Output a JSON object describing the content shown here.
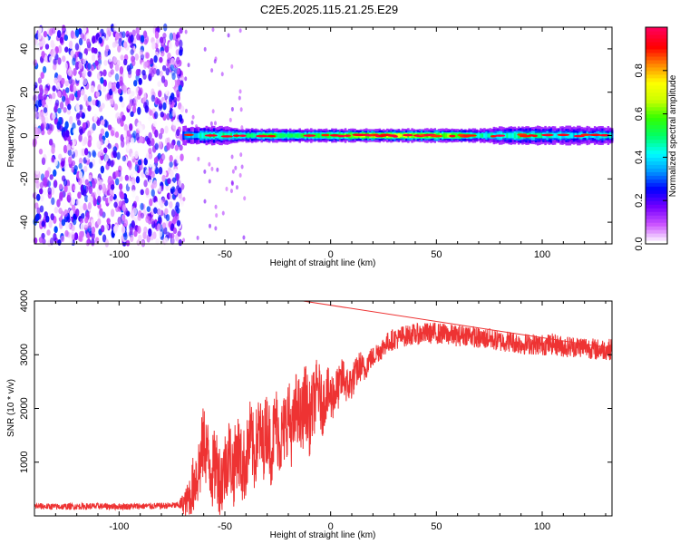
{
  "figure": {
    "title": "C2E5.2025.115.21.25.E29"
  },
  "colors": {
    "snr_line": "#ee3333",
    "axis": "#000000",
    "background": "#ffffff"
  },
  "chart_data": [
    {
      "type": "heatmap",
      "title": "",
      "xlabel": "Height of straight line (km)",
      "ylabel": "Frequency (Hz)",
      "xlim": [
        -140,
        133
      ],
      "ylim": [
        -50,
        50
      ],
      "xticks": [
        -100,
        -50,
        0,
        50,
        100
      ],
      "yticks": [
        -40,
        -20,
        0,
        20,
        40
      ],
      "grid": false,
      "colorbar": {
        "label": "Normalized spectral amplitude",
        "range": [
          0.0,
          1.0
        ],
        "ticks": [
          0.0,
          0.2,
          0.4,
          0.6,
          0.8
        ],
        "colormap": [
          "#ffffff",
          "#cc55ff",
          "#7700ff",
          "#0000ff",
          "#0099ff",
          "#00ffff",
          "#00ff66",
          "#33ff00",
          "#ccff00",
          "#ffff00",
          "#ff8800",
          "#ff0000",
          "#ff0055"
        ]
      },
      "noise_region": {
        "x_range": [
          -140,
          -70
        ],
        "freq_range": [
          -50,
          50
        ],
        "amplitude_range": [
          0.0,
          0.3
        ]
      },
      "ridge": {
        "center_freq": 0,
        "points": [
          {
            "x": -70,
            "amplitude": 0.45,
            "halfwidth_hz": 4
          },
          {
            "x": -60,
            "amplitude": 0.6,
            "halfwidth_hz": 4
          },
          {
            "x": -50,
            "amplitude": 0.65,
            "halfwidth_hz": 4
          },
          {
            "x": -40,
            "amplitude": 0.6,
            "halfwidth_hz": 3
          },
          {
            "x": -30,
            "amplitude": 0.75,
            "halfwidth_hz": 3
          },
          {
            "x": -20,
            "amplitude": 0.7,
            "halfwidth_hz": 3
          },
          {
            "x": -10,
            "amplitude": 0.7,
            "halfwidth_hz": 3
          },
          {
            "x": 0,
            "amplitude": 0.75,
            "halfwidth_hz": 3
          },
          {
            "x": 10,
            "amplitude": 0.85,
            "halfwidth_hz": 3
          },
          {
            "x": 20,
            "amplitude": 0.9,
            "halfwidth_hz": 3
          },
          {
            "x": 30,
            "amplitude": 0.9,
            "halfwidth_hz": 3
          },
          {
            "x": 40,
            "amplitude": 0.9,
            "halfwidth_hz": 3
          },
          {
            "x": 50,
            "amplitude": 0.85,
            "halfwidth_hz": 3
          },
          {
            "x": 60,
            "amplitude": 0.8,
            "halfwidth_hz": 3
          },
          {
            "x": 70,
            "amplitude": 0.6,
            "halfwidth_hz": 3
          },
          {
            "x": 80,
            "amplitude": 0.6,
            "halfwidth_hz": 4
          },
          {
            "x": 90,
            "amplitude": 0.65,
            "halfwidth_hz": 4
          },
          {
            "x": 100,
            "amplitude": 0.6,
            "halfwidth_hz": 4
          },
          {
            "x": 110,
            "amplitude": 0.55,
            "halfwidth_hz": 4
          },
          {
            "x": 120,
            "amplitude": 0.55,
            "halfwidth_hz": 4
          },
          {
            "x": 133,
            "amplitude": 0.55,
            "halfwidth_hz": 4
          }
        ]
      }
    },
    {
      "type": "line",
      "title": "",
      "xlabel": "Height of straight line (km)",
      "ylabel": "SNR (10 * v/v)",
      "xlim": [
        -140,
        133
      ],
      "ylim": [
        0,
        4000
      ],
      "xticks": [
        -100,
        -50,
        0,
        50,
        100
      ],
      "yticks": [
        1000,
        2000,
        3000,
        4000
      ],
      "grid": false,
      "series": [
        {
          "color": "#ee3333",
          "x": [
            -140,
            -130,
            -120,
            -110,
            -100,
            -90,
            -80,
            -72,
            -68,
            -66,
            -64,
            -62,
            -60,
            -58,
            -56,
            -54,
            -52,
            -50,
            -48,
            -46,
            -44,
            -42,
            -40,
            -38,
            -36,
            -34,
            -32,
            -30,
            -28,
            -26,
            -24,
            -22,
            -20,
            -18,
            -16,
            -14,
            -12,
            -10,
            -8,
            -6,
            -4,
            -2,
            0,
            2,
            4,
            6,
            8,
            10,
            12,
            14,
            16,
            18,
            20,
            22,
            24,
            26,
            28,
            30,
            32,
            34,
            36,
            38,
            40,
            45,
            50,
            55,
            60,
            65,
            70,
            75,
            80,
            85,
            90,
            95,
            100,
            105,
            110,
            115,
            120,
            125,
            130,
            133
          ],
          "y": [
            180,
            170,
            175,
            180,
            175,
            180,
            185,
            200,
            260,
            450,
            700,
            900,
            1400,
            1100,
            800,
            1000,
            600,
            900,
            1200,
            800,
            1300,
            900,
            1000,
            1500,
            1100,
            1600,
            1300,
            1700,
            1200,
            1800,
            1400,
            1600,
            1900,
            1500,
            2100,
            1700,
            2200,
            1800,
            2100,
            2400,
            2000,
            2300,
            2200,
            2300,
            2400,
            2600,
            2400,
            2500,
            2650,
            2800,
            2700,
            2900,
            2950,
            3050,
            3100,
            3200,
            3250,
            3300,
            3300,
            3350,
            3350,
            3380,
            3380,
            3400,
            3400,
            3380,
            3350,
            3380,
            3300,
            3300,
            3250,
            3250,
            3200,
            3200,
            3180,
            3200,
            3150,
            3150,
            3150,
            3100,
            3100,
            3100
          ],
          "noise_amplitude": [
            60,
            60,
            60,
            60,
            60,
            60,
            60,
            60,
            300,
            500,
            600,
            700,
            700,
            700,
            700,
            700,
            700,
            700,
            700,
            700,
            700,
            700,
            700,
            700,
            700,
            700,
            700,
            700,
            700,
            700,
            700,
            700,
            700,
            700,
            700,
            700,
            700,
            700,
            650,
            600,
            550,
            500,
            500,
            450,
            400,
            400,
            350,
            350,
            300,
            300,
            250,
            220,
            200,
            200,
            200,
            200,
            200,
            200,
            200,
            200,
            200,
            200,
            200,
            200,
            200,
            200,
            200,
            200,
            200,
            200,
            200,
            200,
            200,
            200,
            200,
            200,
            200,
            200,
            200,
            200,
            200,
            200
          ]
        }
      ],
      "annotations": [
        {
          "x": -13,
          "y": 4000,
          "label": ""
        }
      ]
    }
  ]
}
